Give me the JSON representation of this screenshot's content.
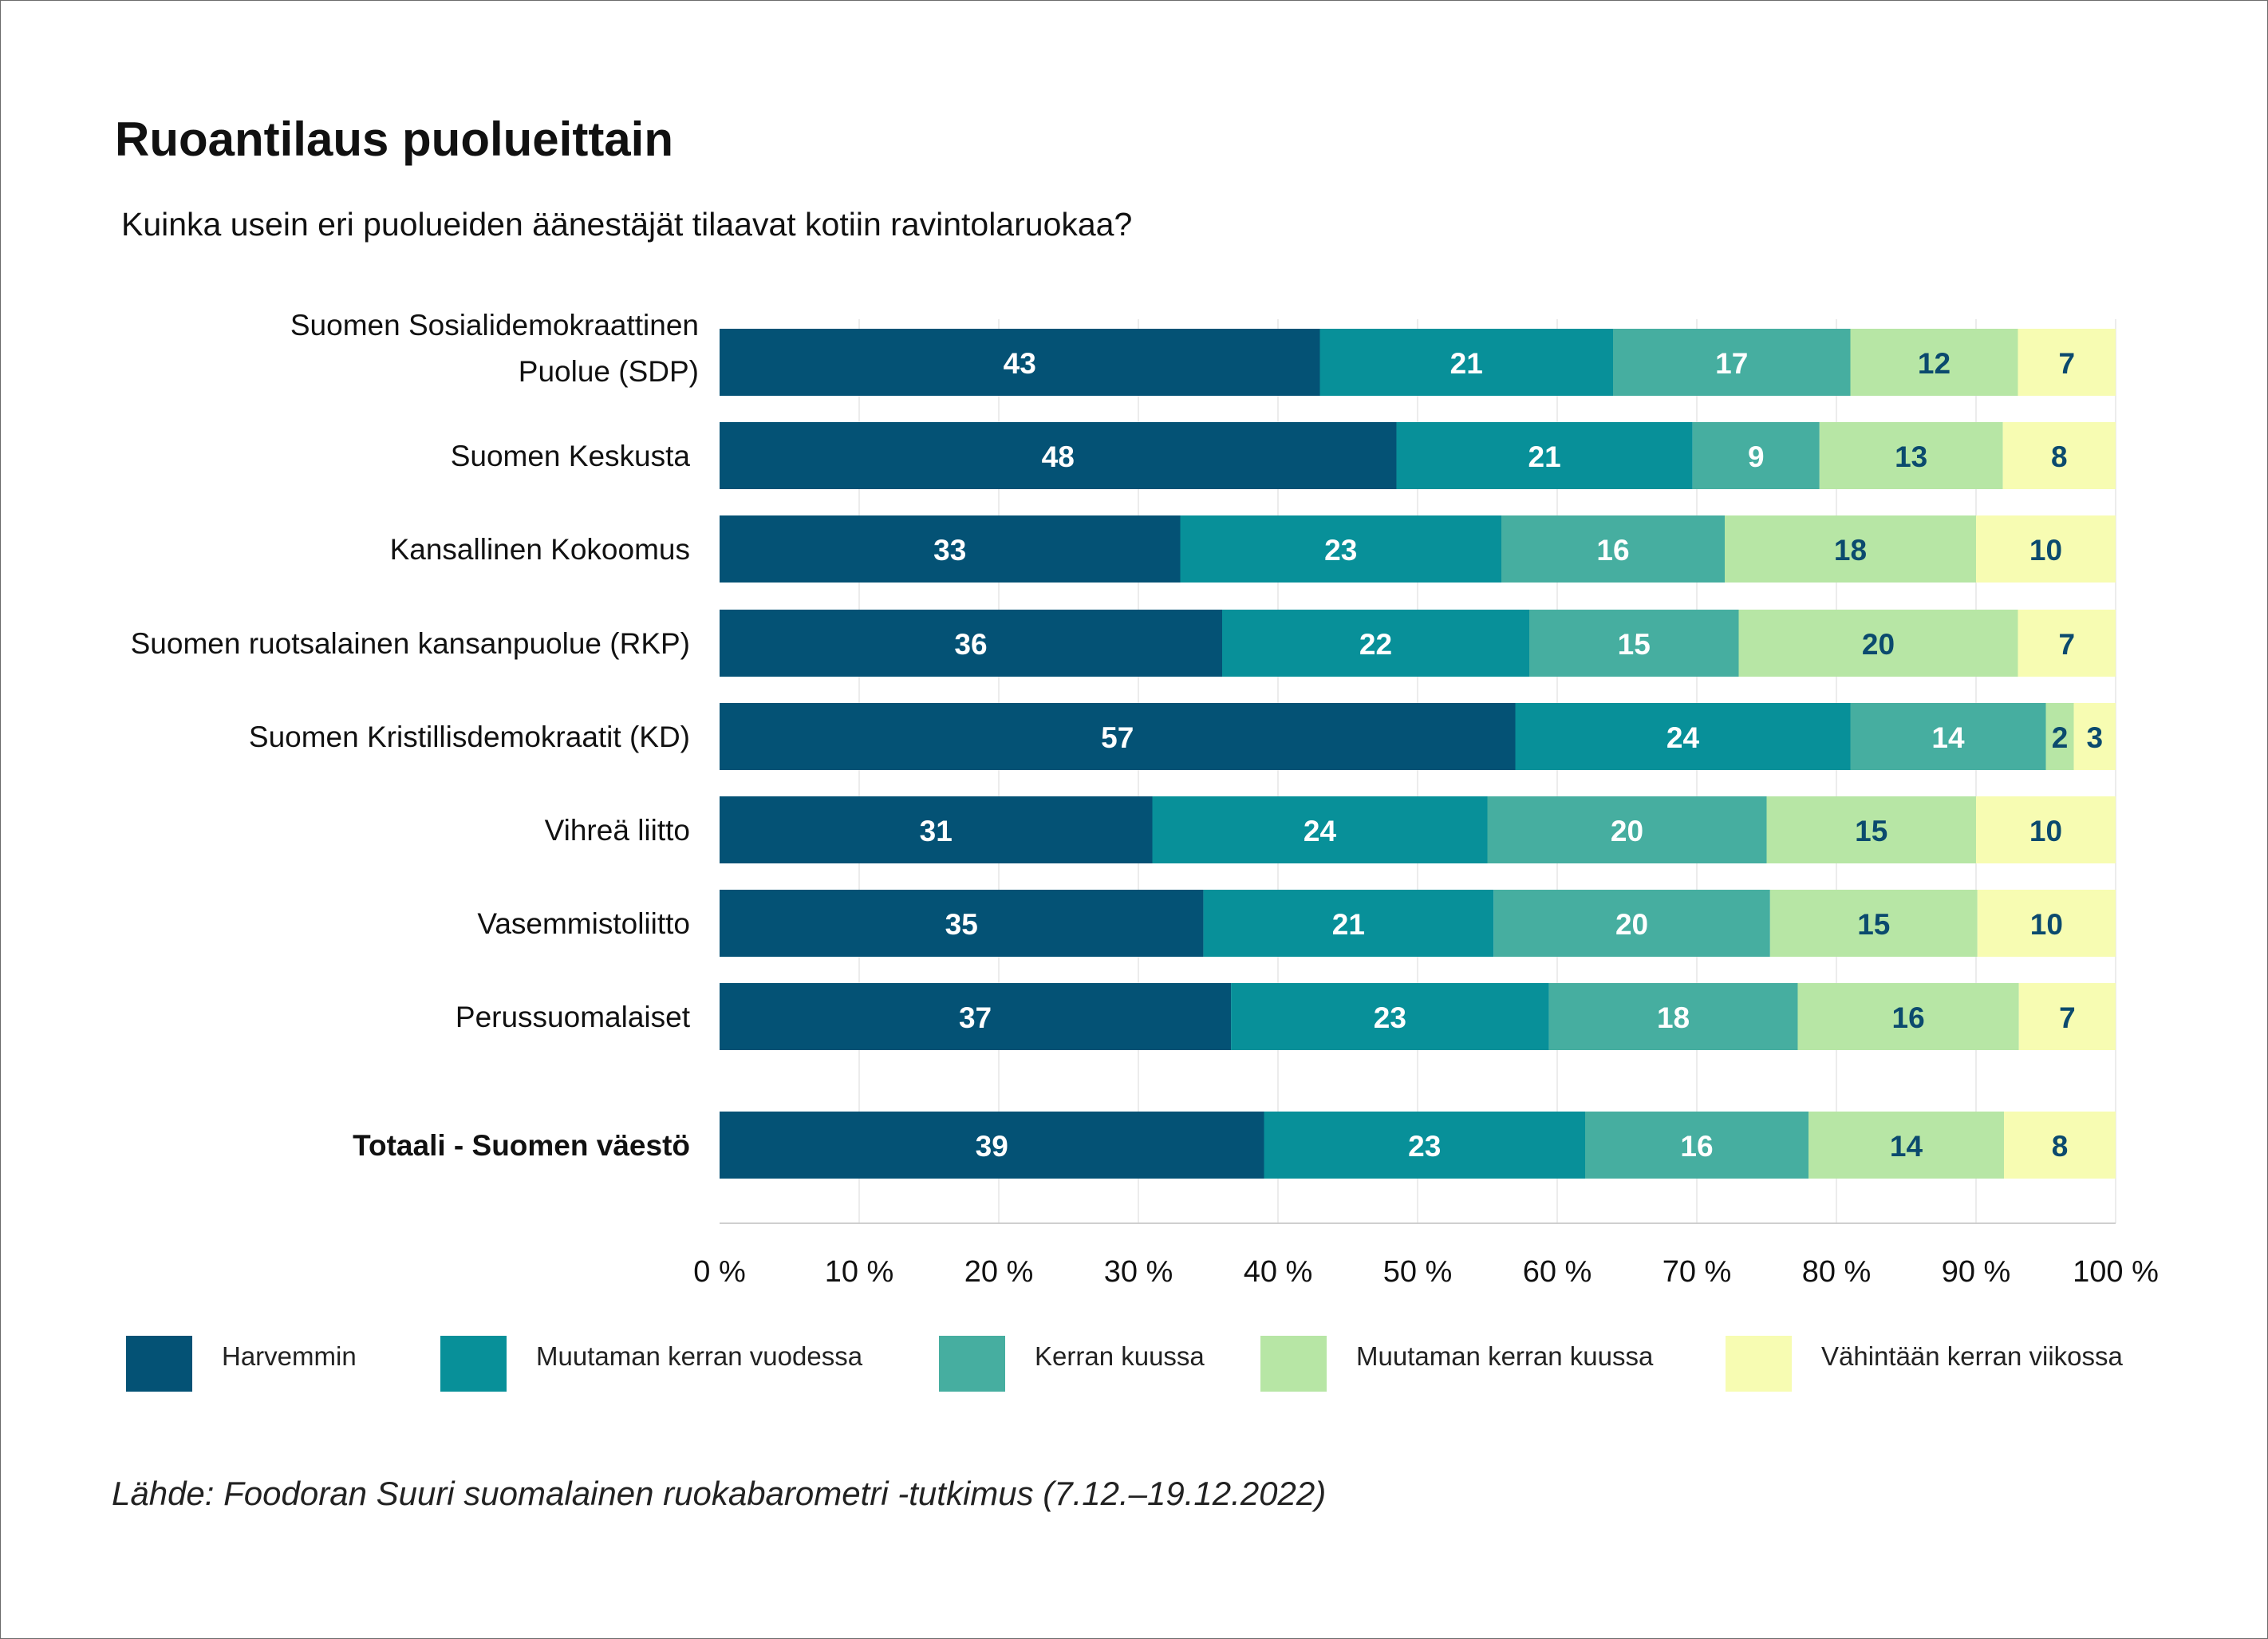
{
  "title": "Ruoantilaus puolueittain",
  "subtitle": "Kuinka usein eri puolueiden äänestäjät tilaavat kotiin ravintolaruokaa?",
  "source": "Lähde: Foodoran Suuri suomalainen ruokabarometri -tutkimus (7.12.–19.12.2022)",
  "chart_data": {
    "type": "bar",
    "orientation": "horizontal",
    "stacked": "percent",
    "categories": [
      [
        "Suomen Sosialidemokraattinen",
        "Puolue (SDP)"
      ],
      [
        "Suomen Keskusta"
      ],
      [
        "Kansallinen Kokoomus"
      ],
      [
        "Suomen ruotsalainen kansanpuolue (RKP)"
      ],
      [
        "Suomen Kristillisdemokraatit (KD)"
      ],
      [
        "Vihreä liitto"
      ],
      [
        "Vasemmistoliitto"
      ],
      [
        "Perussuomalaiset"
      ],
      [
        "Totaali - Suomen väestö"
      ]
    ],
    "bold_categories": [
      8
    ],
    "series": [
      {
        "name": "Harvemmin",
        "color": "#045275",
        "label_color": "#ffffff",
        "values": [
          43,
          48,
          33,
          36,
          57,
          31,
          35,
          37,
          39
        ]
      },
      {
        "name": "Muutaman kerran vuodessa",
        "color": "#089099",
        "label_color": "#ffffff",
        "values": [
          21,
          21,
          23,
          22,
          24,
          24,
          21,
          23,
          23
        ]
      },
      {
        "name": "Kerran kuussa",
        "color": "#46aea0",
        "label_color": "#ffffff",
        "values": [
          17,
          9,
          16,
          15,
          14,
          20,
          20,
          18,
          16
        ]
      },
      {
        "name": "Muutaman kerran kuussa",
        "color": "#b7e6a5",
        "label_color": "#0b4a6e",
        "values": [
          12,
          13,
          18,
          20,
          2,
          15,
          15,
          16,
          14
        ]
      },
      {
        "name": "Vähintään kerran viikossa",
        "color": "#f7fcb2",
        "label_color": "#0b4a6e",
        "values": [
          7,
          8,
          10,
          7,
          3,
          10,
          10,
          7,
          8
        ]
      }
    ],
    "x_ticks": [
      "0 %",
      "10 %",
      "20 %",
      "30 %",
      "40 %",
      "50 %",
      "60 %",
      "70 %",
      "80 %",
      "90 %",
      "100 %"
    ],
    "xlim": [
      0,
      100
    ],
    "grid": true,
    "legend": "bottom"
  }
}
